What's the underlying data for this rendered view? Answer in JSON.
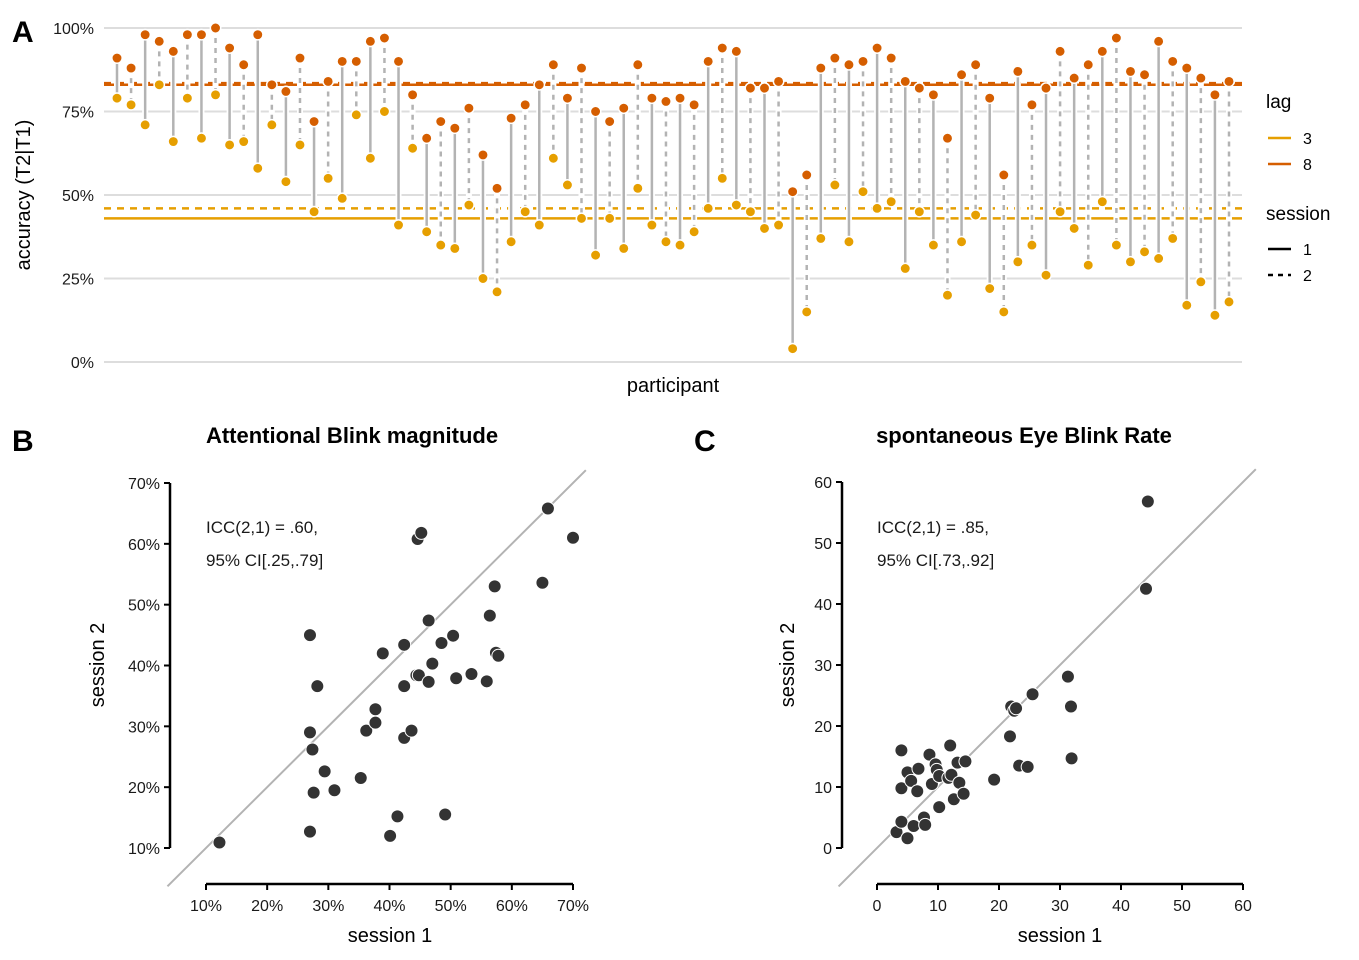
{
  "chart_data": [
    {
      "panel": "A",
      "type": "line",
      "subtype": "paired-dot-stem",
      "title": "",
      "xlabel": "participant",
      "ylabel": "accuracy (T2|T1)",
      "ylim": [
        0,
        100
      ],
      "yticks": [
        "0%",
        "25%",
        "50%",
        "75%",
        "100%"
      ],
      "ytick_values": [
        0,
        25,
        50,
        75,
        100
      ],
      "grid": true,
      "colors": {
        "lag3": "#E69F00",
        "lag8": "#D55E00",
        "stem": "#b3b3b3",
        "grid": "#dddddd"
      },
      "legend": {
        "placement": "right",
        "lag_title": "lag",
        "lag_items": [
          {
            "label": "3",
            "color": "#E69F00"
          },
          {
            "label": "8",
            "color": "#D55E00"
          }
        ],
        "session_title": "session",
        "session_items": [
          {
            "label": "1",
            "linetype": "solid"
          },
          {
            "label": "2",
            "linetype": "dashed"
          }
        ]
      },
      "means": {
        "lag8_session1": 83,
        "lag8_session2": 83.5,
        "lag3_session1": 43,
        "lag3_session2": 46
      },
      "participants": [
        {
          "s1": {
            "lag8": 91,
            "lag3": 79
          },
          "s2": {
            "lag8": 88,
            "lag3": 77
          }
        },
        {
          "s1": {
            "lag8": 98,
            "lag3": 71
          },
          "s2": {
            "lag8": 96,
            "lag3": 83
          }
        },
        {
          "s1": {
            "lag8": 93,
            "lag3": 66
          },
          "s2": {
            "lag8": 98,
            "lag3": 79
          }
        },
        {
          "s1": {
            "lag8": 98,
            "lag3": 67
          },
          "s2": {
            "lag8": 100,
            "lag3": 80
          }
        },
        {
          "s1": {
            "lag8": 94,
            "lag3": 65
          },
          "s2": {
            "lag8": 89,
            "lag3": 66
          }
        },
        {
          "s1": {
            "lag8": 98,
            "lag3": 58
          },
          "s2": {
            "lag8": 83,
            "lag3": 71
          }
        },
        {
          "s1": {
            "lag8": 81,
            "lag3": 54
          },
          "s2": {
            "lag8": 91,
            "lag3": 65
          }
        },
        {
          "s1": {
            "lag8": 72,
            "lag3": 45
          },
          "s2": {
            "lag8": 84,
            "lag3": 55
          }
        },
        {
          "s1": {
            "lag8": 90,
            "lag3": 49
          },
          "s2": {
            "lag8": 90,
            "lag3": 74
          }
        },
        {
          "s1": {
            "lag8": 96,
            "lag3": 61
          },
          "s2": {
            "lag8": 97,
            "lag3": 75
          }
        },
        {
          "s1": {
            "lag8": 90,
            "lag3": 41
          },
          "s2": {
            "lag8": 80,
            "lag3": 64
          }
        },
        {
          "s1": {
            "lag8": 67,
            "lag3": 39
          },
          "s2": {
            "lag8": 72,
            "lag3": 35
          }
        },
        {
          "s1": {
            "lag8": 70,
            "lag3": 34
          },
          "s2": {
            "lag8": 76,
            "lag3": 47
          }
        },
        {
          "s1": {
            "lag8": 62,
            "lag3": 25
          },
          "s2": {
            "lag8": 52,
            "lag3": 21
          }
        },
        {
          "s1": {
            "lag8": 73,
            "lag3": 36
          },
          "s2": {
            "lag8": 77,
            "lag3": 45
          }
        },
        {
          "s1": {
            "lag8": 83,
            "lag3": 41
          },
          "s2": {
            "lag8": 89,
            "lag3": 61
          }
        },
        {
          "s1": {
            "lag8": 79,
            "lag3": 53
          },
          "s2": {
            "lag8": 88,
            "lag3": 43
          }
        },
        {
          "s1": {
            "lag8": 75,
            "lag3": 32
          },
          "s2": {
            "lag8": 72,
            "lag3": 43
          }
        },
        {
          "s1": {
            "lag8": 76,
            "lag3": 34
          },
          "s2": {
            "lag8": 89,
            "lag3": 52
          }
        },
        {
          "s1": {
            "lag8": 79,
            "lag3": 41
          },
          "s2": {
            "lag8": 78,
            "lag3": 36
          }
        },
        {
          "s1": {
            "lag8": 79,
            "lag3": 35
          },
          "s2": {
            "lag8": 77,
            "lag3": 39
          }
        },
        {
          "s1": {
            "lag8": 90,
            "lag3": 46
          },
          "s2": {
            "lag8": 94,
            "lag3": 55
          }
        },
        {
          "s1": {
            "lag8": 93,
            "lag3": 47
          },
          "s2": {
            "lag8": 82,
            "lag3": 45
          }
        },
        {
          "s1": {
            "lag8": 82,
            "lag3": 40
          },
          "s2": {
            "lag8": 84,
            "lag3": 41
          }
        },
        {
          "s1": {
            "lag8": 51,
            "lag3": 4
          },
          "s2": {
            "lag8": 56,
            "lag3": 15
          }
        },
        {
          "s1": {
            "lag8": 88,
            "lag3": 37
          },
          "s2": {
            "lag8": 91,
            "lag3": 53
          }
        },
        {
          "s1": {
            "lag8": 89,
            "lag3": 36
          },
          "s2": {
            "lag8": 90,
            "lag3": 51
          }
        },
        {
          "s1": {
            "lag8": 94,
            "lag3": 46
          },
          "s2": {
            "lag8": 91,
            "lag3": 48
          }
        },
        {
          "s1": {
            "lag8": 84,
            "lag3": 28
          },
          "s2": {
            "lag8": 82,
            "lag3": 45
          }
        },
        {
          "s1": {
            "lag8": 80,
            "lag3": 35
          },
          "s2": {
            "lag8": 67,
            "lag3": 20
          }
        },
        {
          "s1": {
            "lag8": 86,
            "lag3": 36
          },
          "s2": {
            "lag8": 89,
            "lag3": 44
          }
        },
        {
          "s1": {
            "lag8": 79,
            "lag3": 22
          },
          "s2": {
            "lag8": 56,
            "lag3": 15
          }
        },
        {
          "s1": {
            "lag8": 87,
            "lag3": 30
          },
          "s2": {
            "lag8": 77,
            "lag3": 35
          }
        },
        {
          "s1": {
            "lag8": 82,
            "lag3": 26
          },
          "s2": {
            "lag8": 93,
            "lag3": 45
          }
        },
        {
          "s1": {
            "lag8": 85,
            "lag3": 40
          },
          "s2": {
            "lag8": 89,
            "lag3": 29
          }
        },
        {
          "s1": {
            "lag8": 93,
            "lag3": 48
          },
          "s2": {
            "lag8": 97,
            "lag3": 35
          }
        },
        {
          "s1": {
            "lag8": 87,
            "lag3": 30
          },
          "s2": {
            "lag8": 86,
            "lag3": 33
          }
        },
        {
          "s1": {
            "lag8": 96,
            "lag3": 31
          },
          "s2": {
            "lag8": 90,
            "lag3": 37
          }
        },
        {
          "s1": {
            "lag8": 88,
            "lag3": 17
          },
          "s2": {
            "lag8": 85,
            "lag3": 24
          }
        },
        {
          "s1": {
            "lag8": 80,
            "lag3": 14
          },
          "s2": {
            "lag8": 84,
            "lag3": 18
          }
        }
      ]
    },
    {
      "panel": "B",
      "type": "scatter",
      "title": "Attentional Blink magnitude",
      "xlabel": "session 1",
      "ylabel": "session 2",
      "xlim": [
        10,
        70
      ],
      "ylim": [
        10,
        70
      ],
      "xticks": [
        "10%",
        "20%",
        "30%",
        "40%",
        "50%",
        "60%",
        "70%"
      ],
      "yticks": [
        "10%",
        "20%",
        "30%",
        "40%",
        "50%",
        "60%",
        "70%"
      ],
      "tick_values": [
        10,
        20,
        30,
        40,
        50,
        60,
        70
      ],
      "identity_line": true,
      "grid": false,
      "annotation": [
        "ICC(2,1) = .60,",
        "95% CI[.25,.79]"
      ],
      "point_color": "#333333",
      "points": [
        [
          12.2,
          10.9
        ],
        [
          27,
          45
        ],
        [
          27,
          29
        ],
        [
          27.4,
          26.2
        ],
        [
          27.6,
          19.1
        ],
        [
          28.2,
          36.6
        ],
        [
          27,
          12.7
        ],
        [
          29.4,
          22.6
        ],
        [
          31,
          19.5
        ],
        [
          35.3,
          21.5
        ],
        [
          36.2,
          29.3
        ],
        [
          37.7,
          30.6
        ],
        [
          37.7,
          32.8
        ],
        [
          38.9,
          42
        ],
        [
          40.1,
          12
        ],
        [
          41.3,
          15.2
        ],
        [
          42.4,
          43.4
        ],
        [
          42.4,
          36.6
        ],
        [
          42.4,
          28.1
        ],
        [
          43.6,
          29.3
        ],
        [
          44.4,
          38.4
        ],
        [
          44.8,
          38.4
        ],
        [
          44.6,
          60.8
        ],
        [
          45.2,
          61.8
        ],
        [
          46.4,
          47.4
        ],
        [
          46.4,
          37.3
        ],
        [
          47,
          40.3
        ],
        [
          48.5,
          43.7
        ],
        [
          49.1,
          15.5
        ],
        [
          50.4,
          44.9
        ],
        [
          50.9,
          37.9
        ],
        [
          53.4,
          38.6
        ],
        [
          55.9,
          37.4
        ],
        [
          56.4,
          48.2
        ],
        [
          57.2,
          53
        ],
        [
          57.4,
          42.1
        ],
        [
          57.8,
          41.6
        ],
        [
          65,
          53.6
        ],
        [
          65.9,
          65.8
        ],
        [
          70,
          61
        ]
      ]
    },
    {
      "panel": "C",
      "type": "scatter",
      "title": "spontaneous Eye Blink Rate",
      "xlabel": "session 1",
      "ylabel": "session 2",
      "xlim": [
        0,
        60
      ],
      "ylim": [
        0,
        60
      ],
      "xticks": [
        "0",
        "10",
        "20",
        "30",
        "40",
        "50",
        "60"
      ],
      "yticks": [
        "0",
        "10",
        "20",
        "30",
        "40",
        "50",
        "60"
      ],
      "tick_values": [
        0,
        10,
        20,
        30,
        40,
        50,
        60
      ],
      "identity_line": true,
      "grid": false,
      "annotation": [
        "ICC(2,1) = .85,",
        "95% CI[.73,.92]"
      ],
      "point_color": "#333333",
      "points": [
        [
          3.2,
          2.6
        ],
        [
          4,
          4.3
        ],
        [
          5,
          1.6
        ],
        [
          6,
          3.6
        ],
        [
          7.7,
          5
        ],
        [
          7.9,
          3.8
        ],
        [
          4,
          9.8
        ],
        [
          4,
          16
        ],
        [
          5,
          12.4
        ],
        [
          5.6,
          11
        ],
        [
          6.6,
          9.3
        ],
        [
          6.8,
          13
        ],
        [
          9,
          10.5
        ],
        [
          8.6,
          15.3
        ],
        [
          9.6,
          13.7
        ],
        [
          9.8,
          12.8
        ],
        [
          10.2,
          11.8
        ],
        [
          10.2,
          6.7
        ],
        [
          11.7,
          11.5
        ],
        [
          12.2,
          12
        ],
        [
          12,
          16.8
        ],
        [
          12.6,
          8
        ],
        [
          13.5,
          10.7
        ],
        [
          13.2,
          14
        ],
        [
          14.2,
          8.9
        ],
        [
          14.5,
          14.2
        ],
        [
          19.2,
          11.2
        ],
        [
          21.8,
          18.3
        ],
        [
          22,
          23.2
        ],
        [
          22.5,
          22.5
        ],
        [
          22.8,
          22.9
        ],
        [
          23.3,
          13.5
        ],
        [
          24.7,
          13.3
        ],
        [
          25.5,
          25.2
        ],
        [
          31.3,
          28.1
        ],
        [
          31.8,
          23.2
        ],
        [
          31.9,
          14.7
        ],
        [
          44.1,
          42.5
        ],
        [
          44.4,
          56.8
        ]
      ]
    }
  ],
  "panel_labels": {
    "A": "A",
    "B": "B",
    "C": "C"
  }
}
